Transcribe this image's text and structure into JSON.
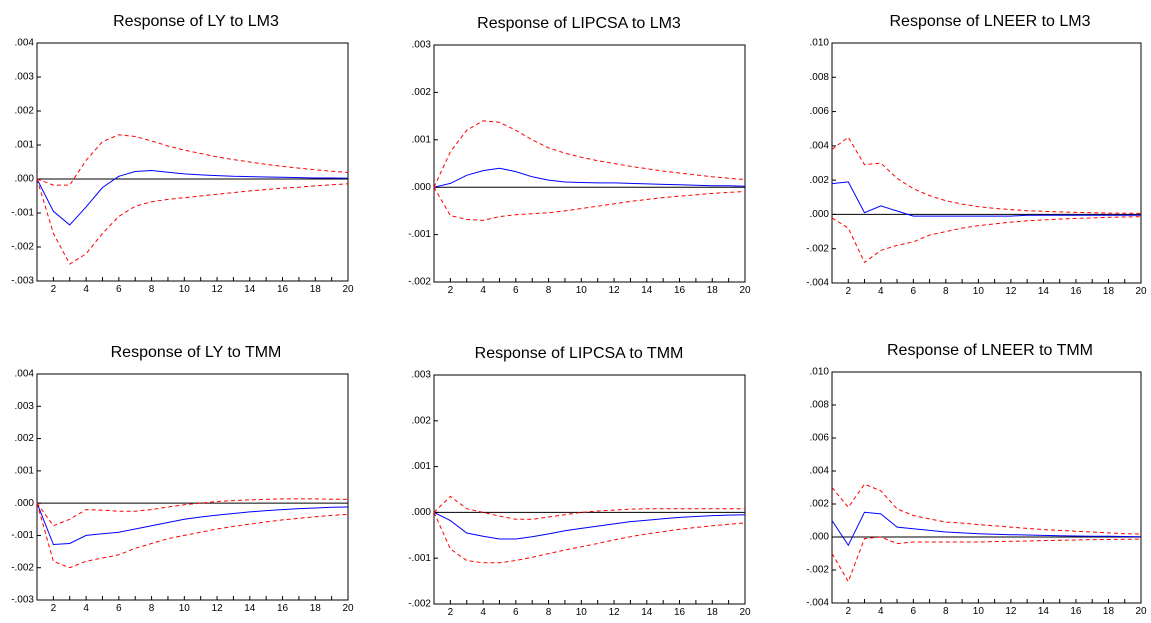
{
  "colors": {
    "irf": "#0000ff",
    "band": "#ff0000",
    "zero": "#000000",
    "frame": "#000000"
  },
  "chart_data": [
    {
      "type": "line",
      "title": "Response of LY to LM3",
      "x": [
        1,
        2,
        3,
        4,
        5,
        6,
        7,
        8,
        9,
        10,
        11,
        12,
        13,
        14,
        15,
        16,
        17,
        18,
        19,
        20
      ],
      "xticks": [
        "2",
        "4",
        "6",
        "8",
        "10",
        "12",
        "14",
        "16",
        "18",
        "20"
      ],
      "ylim": [
        -0.003,
        0.004
      ],
      "yticks": [
        ".004",
        ".003",
        ".002",
        ".001",
        ".000",
        "-.001",
        "-.002",
        "-.003"
      ],
      "series": [
        {
          "role": "irf",
          "values": [
            0,
            -0.00095,
            -0.00135,
            -0.00082,
            -0.00025,
            8e-05,
            0.00022,
            0.00025,
            0.0002,
            0.00015,
            0.00012,
            0.0001,
            8e-05,
            7e-05,
            6e-05,
            5e-05,
            4e-05,
            3e-05,
            3e-05,
            2e-05
          ]
        },
        {
          "role": "upper",
          "values": [
            0,
            -0.00018,
            -0.00018,
            0.00055,
            0.0011,
            0.0013,
            0.00125,
            0.00112,
            0.00097,
            0.00085,
            0.00075,
            0.00065,
            0.00057,
            0.0005,
            0.00043,
            0.00037,
            0.00032,
            0.00027,
            0.00023,
            0.00019
          ]
        },
        {
          "role": "lower",
          "values": [
            0,
            -0.0016,
            -0.0025,
            -0.0022,
            -0.0016,
            -0.0011,
            -0.0008,
            -0.00067,
            -0.0006,
            -0.00055,
            -0.0005,
            -0.00045,
            -0.0004,
            -0.00035,
            -0.00031,
            -0.00027,
            -0.00024,
            -0.0002,
            -0.00017,
            -0.00014
          ]
        }
      ]
    },
    {
      "type": "line",
      "title": "Response of LIPCSA to LM3",
      "x": [
        1,
        2,
        3,
        4,
        5,
        6,
        7,
        8,
        9,
        10,
        11,
        12,
        13,
        14,
        15,
        16,
        17,
        18,
        19,
        20
      ],
      "xticks": [
        "2",
        "4",
        "6",
        "8",
        "10",
        "12",
        "14",
        "16",
        "18",
        "20"
      ],
      "ylim": [
        -0.002,
        0.003
      ],
      "yticks": [
        ".003",
        ".002",
        ".001",
        ".000",
        "-.001",
        "-.002"
      ],
      "series": [
        {
          "role": "irf",
          "values": [
            0,
            8e-05,
            0.00025,
            0.00035,
            0.0004,
            0.00033,
            0.00022,
            0.00015,
            0.00011,
            0.0001,
            9e-05,
            9e-05,
            8e-05,
            7e-05,
            6e-05,
            5e-05,
            4e-05,
            3e-05,
            3e-05,
            2e-05
          ]
        },
        {
          "role": "upper",
          "values": [
            0,
            0.00075,
            0.0012,
            0.0014,
            0.00137,
            0.0012,
            0.001,
            0.00083,
            0.00072,
            0.00063,
            0.00056,
            0.0005,
            0.00044,
            0.00039,
            0.00034,
            0.0003,
            0.00026,
            0.00022,
            0.00019,
            0.00016
          ]
        },
        {
          "role": "lower",
          "values": [
            0,
            -0.0006,
            -0.00068,
            -0.0007,
            -0.00062,
            -0.00058,
            -0.00056,
            -0.00054,
            -0.0005,
            -0.00045,
            -0.0004,
            -0.00035,
            -0.0003,
            -0.00026,
            -0.00022,
            -0.00019,
            -0.00016,
            -0.00013,
            -0.00011,
            -9e-05
          ]
        }
      ]
    },
    {
      "type": "line",
      "title": "Response of LNEER to LM3",
      "x": [
        1,
        2,
        3,
        4,
        5,
        6,
        7,
        8,
        9,
        10,
        11,
        12,
        13,
        14,
        15,
        16,
        17,
        18,
        19,
        20
      ],
      "xticks": [
        "2",
        "4",
        "6",
        "8",
        "10",
        "12",
        "14",
        "16",
        "18",
        "20"
      ],
      "ylim": [
        -0.004,
        0.01
      ],
      "yticks": [
        ".010",
        ".008",
        ".006",
        ".004",
        ".002",
        ".000",
        "-.002",
        "-.004"
      ],
      "series": [
        {
          "role": "irf",
          "values": [
            0.0018,
            0.0019,
            0.0001,
            0.0005,
            0.0002,
            -0.0001,
            -0.0001,
            -0.0001,
            -0.0001,
            -0.0001,
            -0.0001,
            -0.0001,
            -5e-05,
            -5e-05,
            -5e-05,
            -5e-05,
            -5e-05,
            -5e-05,
            -5e-05,
            -5e-05
          ]
        },
        {
          "role": "upper",
          "values": [
            0.0038,
            0.0045,
            0.0029,
            0.003,
            0.0021,
            0.0015,
            0.0011,
            0.0008,
            0.0006,
            0.00045,
            0.00035,
            0.00028,
            0.00022,
            0.00018,
            0.00015,
            0.00012,
            0.0001,
            8e-05,
            7e-05,
            6e-05
          ]
        },
        {
          "role": "lower",
          "values": [
            -0.0002,
            -0.0008,
            -0.0028,
            -0.0021,
            -0.0018,
            -0.0016,
            -0.0012,
            -0.001,
            -0.0008,
            -0.00065,
            -0.00055,
            -0.00045,
            -0.00038,
            -0.00032,
            -0.00027,
            -0.00023,
            -0.0002,
            -0.00017,
            -0.00015,
            -0.00013
          ]
        }
      ]
    },
    {
      "type": "line",
      "title": "Response of LY to TMM",
      "x": [
        1,
        2,
        3,
        4,
        5,
        6,
        7,
        8,
        9,
        10,
        11,
        12,
        13,
        14,
        15,
        16,
        17,
        18,
        19,
        20
      ],
      "xticks": [
        "2",
        "4",
        "6",
        "8",
        "10",
        "12",
        "14",
        "16",
        "18",
        "20"
      ],
      "ylim": [
        -0.003,
        0.004
      ],
      "yticks": [
        ".004",
        ".003",
        ".002",
        ".001",
        ".000",
        "-.001",
        "-.002",
        "-.003"
      ],
      "series": [
        {
          "role": "irf",
          "values": [
            0,
            -0.00128,
            -0.00125,
            -0.001,
            -0.00095,
            -0.0009,
            -0.0008,
            -0.0007,
            -0.0006,
            -0.0005,
            -0.00043,
            -0.00037,
            -0.00032,
            -0.00027,
            -0.00023,
            -0.0002,
            -0.00017,
            -0.00015,
            -0.00013,
            -0.00012
          ]
        },
        {
          "role": "upper",
          "values": [
            0,
            -0.0007,
            -0.0005,
            -0.0002,
            -0.00022,
            -0.00025,
            -0.00025,
            -0.0002,
            -0.00012,
            -5e-05,
            0,
            5e-05,
            8e-05,
            0.0001,
            0.00012,
            0.00013,
            0.00013,
            0.00013,
            0.00012,
            0.00012
          ]
        },
        {
          "role": "lower",
          "values": [
            0,
            -0.0018,
            -0.002,
            -0.0018,
            -0.0017,
            -0.0016,
            -0.0014,
            -0.00125,
            -0.0011,
            -0.001,
            -0.0009,
            -0.0008,
            -0.00072,
            -0.00065,
            -0.00058,
            -0.00052,
            -0.00047,
            -0.00042,
            -0.00038,
            -0.00035
          ]
        }
      ]
    },
    {
      "type": "line",
      "title": "Response of LIPCSA to TMM",
      "x": [
        1,
        2,
        3,
        4,
        5,
        6,
        7,
        8,
        9,
        10,
        11,
        12,
        13,
        14,
        15,
        16,
        17,
        18,
        19,
        20
      ],
      "xticks": [
        "2",
        "4",
        "6",
        "8",
        "10",
        "12",
        "14",
        "16",
        "18",
        "20"
      ],
      "ylim": [
        -0.002,
        0.003
      ],
      "yticks": [
        ".003",
        ".002",
        ".001",
        ".000",
        "-.001",
        "-.002"
      ],
      "series": [
        {
          "role": "irf",
          "values": [
            0,
            -0.00018,
            -0.00045,
            -0.00052,
            -0.00058,
            -0.00058,
            -0.00053,
            -0.00047,
            -0.0004,
            -0.00035,
            -0.0003,
            -0.00025,
            -0.0002,
            -0.00017,
            -0.00014,
            -0.00011,
            -9e-05,
            -7e-05,
            -6e-05,
            -5e-05
          ]
        },
        {
          "role": "upper",
          "values": [
            0,
            0.00035,
            8e-05,
            0,
            -8e-05,
            -0.00015,
            -0.00015,
            -0.0001,
            -5e-05,
            0,
            3e-05,
            5e-05,
            7e-05,
            8e-05,
            8e-05,
            8e-05,
            8e-05,
            8e-05,
            8e-05,
            8e-05
          ]
        },
        {
          "role": "lower",
          "values": [
            0,
            -0.0008,
            -0.00105,
            -0.0011,
            -0.0011,
            -0.00105,
            -0.00098,
            -0.0009,
            -0.00082,
            -0.00075,
            -0.00068,
            -0.0006,
            -0.00053,
            -0.00047,
            -0.00042,
            -0.00037,
            -0.00033,
            -0.00029,
            -0.00026,
            -0.00023
          ]
        }
      ]
    },
    {
      "type": "line",
      "title": "Response of LNEER to TMM",
      "x": [
        1,
        2,
        3,
        4,
        5,
        6,
        7,
        8,
        9,
        10,
        11,
        12,
        13,
        14,
        15,
        16,
        17,
        18,
        19,
        20
      ],
      "xticks": [
        "2",
        "4",
        "6",
        "8",
        "10",
        "12",
        "14",
        "16",
        "18",
        "20"
      ],
      "ylim": [
        -0.004,
        0.01
      ],
      "yticks": [
        ".010",
        ".008",
        ".006",
        ".004",
        ".002",
        ".000",
        "-.002",
        "-.004"
      ],
      "series": [
        {
          "role": "irf",
          "values": [
            0.001,
            -0.0005,
            0.0015,
            0.0014,
            0.0006,
            0.0005,
            0.0004,
            0.0003,
            0.00025,
            0.0002,
            0.00017,
            0.00014,
            0.00012,
            0.0001,
            8e-05,
            6e-05,
            5e-05,
            4e-05,
            3e-05,
            2e-05
          ]
        },
        {
          "role": "upper",
          "values": [
            0.003,
            0.0018,
            0.0032,
            0.0028,
            0.0017,
            0.0013,
            0.0011,
            0.0009,
            0.00085,
            0.00075,
            0.00068,
            0.0006,
            0.00052,
            0.00045,
            0.0004,
            0.00035,
            0.0003,
            0.00025,
            0.0002,
            0.00018
          ]
        },
        {
          "role": "lower",
          "values": [
            -0.001,
            -0.0027,
            -0.0001,
            0,
            -0.0004,
            -0.0003,
            -0.0003,
            -0.0003,
            -0.0003,
            -0.0003,
            -0.00028,
            -0.00026,
            -0.00024,
            -0.00022,
            -0.0002,
            -0.00018,
            -0.00016,
            -0.00015,
            -0.00014,
            -0.00013
          ]
        }
      ]
    }
  ]
}
